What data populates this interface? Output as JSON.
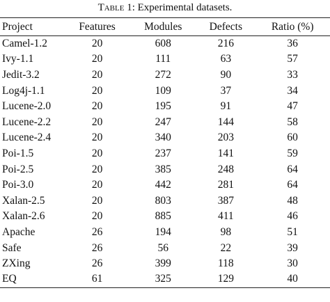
{
  "caption": {
    "label": "Table",
    "text": "1: Experimental datasets."
  },
  "table": {
    "header": [
      "Project",
      "Features",
      "Modules",
      "Defects",
      "Ratio (%)"
    ],
    "rows": [
      [
        "Camel-1.2",
        20,
        608,
        216,
        36
      ],
      [
        "Ivy-1.1",
        20,
        111,
        63,
        57
      ],
      [
        "Jedit-3.2",
        20,
        272,
        90,
        33
      ],
      [
        "Log4j-1.1",
        20,
        109,
        37,
        34
      ],
      [
        "Lucene-2.0",
        20,
        195,
        91,
        47
      ],
      [
        "Lucene-2.2",
        20,
        247,
        144,
        58
      ],
      [
        "Lucene-2.4",
        20,
        340,
        203,
        60
      ],
      [
        "Poi-1.5",
        20,
        237,
        141,
        59
      ],
      [
        "Poi-2.5",
        20,
        385,
        248,
        64
      ],
      [
        "Poi-3.0",
        20,
        442,
        281,
        64
      ],
      [
        "Xalan-2.5",
        20,
        803,
        387,
        48
      ],
      [
        "Xalan-2.6",
        20,
        885,
        411,
        46
      ],
      [
        "Apache",
        26,
        194,
        98,
        51
      ],
      [
        "Safe",
        26,
        56,
        22,
        39
      ],
      [
        "ZXing",
        26,
        399,
        118,
        30
      ],
      [
        "EQ",
        61,
        325,
        129,
        40
      ]
    ]
  }
}
